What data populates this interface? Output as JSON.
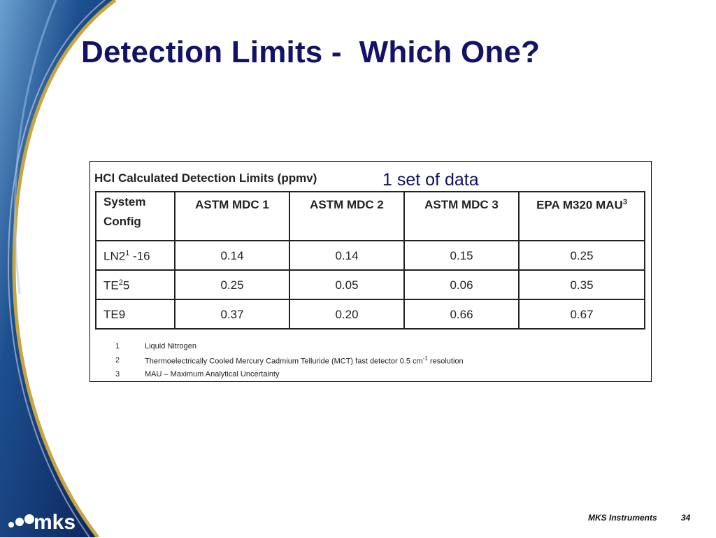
{
  "slide": {
    "title": "Detection Limits -  Which One?",
    "annotation": "1 set of data",
    "footer_company": "MKS Instruments",
    "page_number": "34",
    "logo_text": "mks"
  },
  "table": {
    "caption": "HCl Calculated Detection Limits (ppmv)",
    "header": {
      "config": "System Config",
      "col1": "ASTM MDC 1",
      "col2": "ASTM MDC 2",
      "col3": "ASTM MDC 3",
      "col4": "EPA M320 MAU",
      "col4_sup": "3"
    },
    "rows": [
      {
        "name": "LN2",
        "sup": "1",
        "suffix": " -16",
        "values": [
          "0.14",
          "0.14",
          "0.15",
          "0.25"
        ]
      },
      {
        "name": "TE",
        "sup": "2",
        "suffix": "5",
        "values": [
          "0.25",
          "0.05",
          "0.06",
          "0.35"
        ]
      },
      {
        "name": "TE9",
        "sup": "",
        "suffix": "",
        "values": [
          "0.37",
          "0.20",
          "0.66",
          "0.67"
        ]
      }
    ],
    "footnotes": [
      {
        "num": "1",
        "text": "Liquid Nitrogen"
      },
      {
        "num": "2",
        "text": "Thermoelectrically Cooled Mercury Cadmium Telluride (MCT) fast detector 0.5 cm",
        "sup": "-1",
        "tail": " resolution"
      },
      {
        "num": "3",
        "text": "MAU – Maximum Analytical Uncertainty"
      }
    ]
  },
  "colors": {
    "title": "#121267",
    "swoosh_dark": "#0b2a63",
    "swoosh_gold": "#c8a540"
  }
}
